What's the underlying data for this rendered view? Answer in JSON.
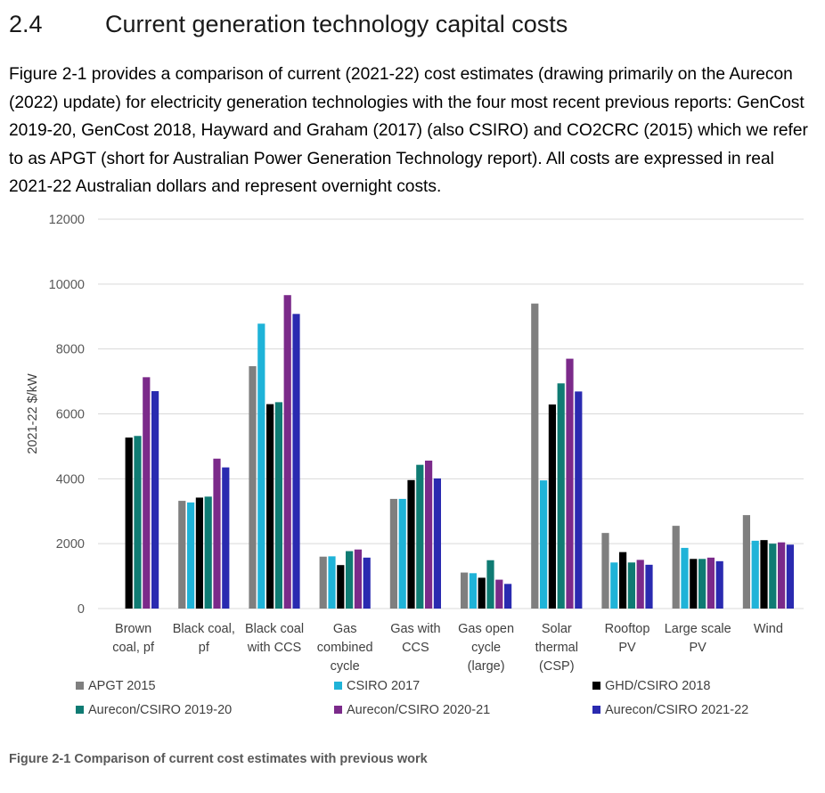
{
  "section": {
    "number": "2.4",
    "title": "Current generation technology capital costs"
  },
  "intro_paragraph": "Figure 2-1 provides a comparison of current (2021-22) cost estimates (drawing primarily on the Aurecon (2022) update) for electricity generation technologies with the four most recent previous reports: GenCost 2019-20, GenCost 2018, Hayward and Graham (2017) (also CSIRO) and CO2CRC (2015) which we refer to as APGT (short for Australian Power Generation Technology report). All costs are expressed in real 2021-22 Australian dollars and represent overnight costs.",
  "figure_caption": "Figure 2-1 Comparison of current cost estimates with previous work",
  "chart_data": {
    "type": "bar",
    "title": "",
    "xlabel": "",
    "ylabel": "2021-22 $/kW",
    "ylim": [
      0,
      12000
    ],
    "yticks": [
      0,
      2000,
      4000,
      6000,
      8000,
      10000,
      12000
    ],
    "grid": true,
    "legend_position": "bottom",
    "categories": [
      [
        "Brown",
        "coal, pf"
      ],
      [
        "Black coal,",
        "pf"
      ],
      [
        "Black coal",
        "with CCS"
      ],
      [
        "Gas",
        "combined",
        "cycle"
      ],
      [
        "Gas with",
        "CCS"
      ],
      [
        "Gas open",
        "cycle",
        "(large)"
      ],
      [
        "Solar",
        "thermal",
        "(CSP)"
      ],
      [
        "Rooftop",
        "PV"
      ],
      [
        "Large scale",
        "PV"
      ],
      [
        "Wind"
      ]
    ],
    "series": [
      {
        "name": "APGT 2015",
        "color": "#7f7f7f",
        "values": [
          null,
          3320,
          7470,
          1600,
          3380,
          1110,
          9400,
          2330,
          2550,
          2880
        ]
      },
      {
        "name": "CSIRO 2017",
        "color": "#1fb3d8",
        "values": [
          null,
          3270,
          8780,
          1610,
          3380,
          1090,
          3950,
          1420,
          1870,
          2090
        ]
      },
      {
        "name": "GHD/CSIRO 2018",
        "color": "#000000",
        "values": [
          5270,
          3420,
          6300,
          1340,
          3960,
          950,
          6290,
          1740,
          1530,
          2110
        ]
      },
      {
        "name": "Aurecon/CSIRO 2019-20",
        "color": "#0f7b73",
        "values": [
          5320,
          3450,
          6360,
          1770,
          4430,
          1490,
          6940,
          1420,
          1530,
          2000
        ]
      },
      {
        "name": "Aurecon/CSIRO 2020-21",
        "color": "#7b2a8a",
        "values": [
          7130,
          4620,
          9660,
          1820,
          4560,
          890,
          7700,
          1500,
          1570,
          2040
        ]
      },
      {
        "name": "Aurecon/CSIRO 2021-22",
        "color": "#2a2ab0",
        "values": [
          6700,
          4350,
          9080,
          1570,
          4010,
          760,
          6690,
          1350,
          1460,
          1970
        ]
      }
    ]
  }
}
